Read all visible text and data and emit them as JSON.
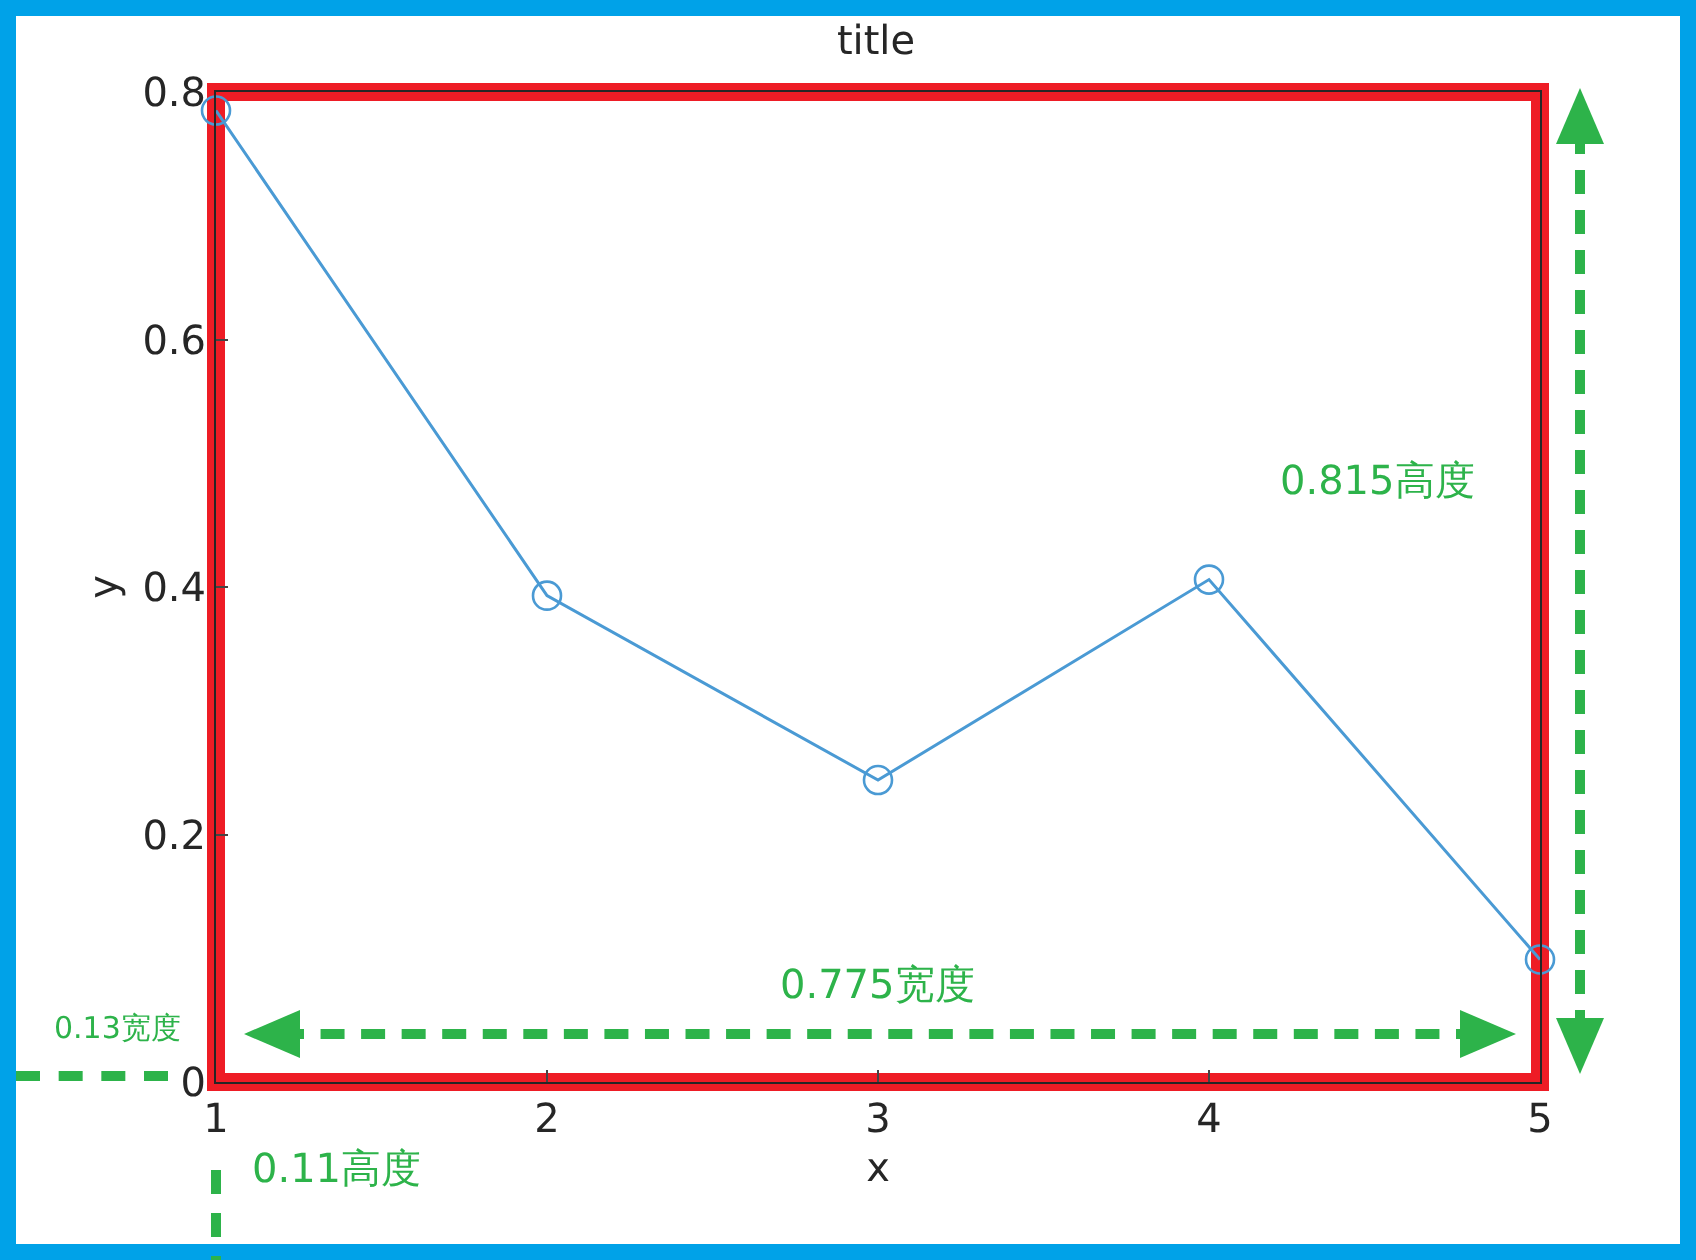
{
  "chart_data": {
    "type": "line",
    "title": "title",
    "xlabel": "x",
    "ylabel": "y",
    "x": [
      1,
      2,
      3,
      4,
      5
    ],
    "series": [
      {
        "color": "#4a9ad4",
        "values": [
          0.785,
          0.393,
          0.244,
          0.406,
          0.099
        ]
      }
    ],
    "xlim": [
      1,
      5
    ],
    "xticks": [
      1,
      2,
      3,
      4,
      5
    ],
    "ylim": [
      0,
      0.8
    ],
    "yticks": [
      0,
      0.2,
      0.4,
      0.6,
      0.8
    ],
    "marker": "circle",
    "line_style": "solid",
    "annotations": [
      "0.815高度",
      "0.775宽度",
      "0.13宽度",
      "0.11高度"
    ]
  }
}
